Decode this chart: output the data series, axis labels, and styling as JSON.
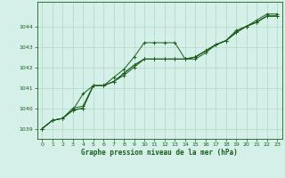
{
  "bg_color": "#d4f0e8",
  "grid_color": "#b0d8c8",
  "line_color": "#1a5c1a",
  "xlabel": "Graphe pression niveau de la mer (hPa)",
  "xlim": [
    -0.5,
    23.5
  ],
  "ylim": [
    1038.5,
    1045.2
  ],
  "yticks": [
    1039,
    1040,
    1041,
    1042,
    1043,
    1044
  ],
  "xticks": [
    0,
    1,
    2,
    3,
    4,
    5,
    6,
    7,
    8,
    9,
    10,
    11,
    12,
    13,
    14,
    15,
    16,
    17,
    18,
    19,
    20,
    21,
    22,
    23
  ],
  "series1": [
    [
      0,
      1039.0
    ],
    [
      1,
      1039.4
    ],
    [
      2,
      1039.5
    ],
    [
      3,
      1039.9
    ],
    [
      4,
      1040.7
    ],
    [
      5,
      1041.1
    ],
    [
      6,
      1041.1
    ],
    [
      7,
      1041.5
    ],
    [
      8,
      1041.9
    ],
    [
      9,
      1042.5
    ],
    [
      10,
      1043.2
    ],
    [
      11,
      1043.2
    ],
    [
      12,
      1043.2
    ],
    [
      13,
      1043.2
    ],
    [
      14,
      1042.4
    ],
    [
      15,
      1042.4
    ],
    [
      16,
      1042.7
    ],
    [
      17,
      1043.1
    ],
    [
      18,
      1043.3
    ],
    [
      19,
      1043.8
    ],
    [
      20,
      1044.0
    ],
    [
      21,
      1044.3
    ],
    [
      22,
      1044.6
    ],
    [
      23,
      1044.6
    ]
  ],
  "series2": [
    [
      0,
      1039.0
    ],
    [
      1,
      1039.4
    ],
    [
      2,
      1039.5
    ],
    [
      3,
      1040.0
    ],
    [
      4,
      1040.1
    ],
    [
      5,
      1041.1
    ],
    [
      6,
      1041.1
    ],
    [
      7,
      1041.3
    ],
    [
      8,
      1041.7
    ],
    [
      9,
      1042.1
    ],
    [
      10,
      1042.4
    ],
    [
      11,
      1042.4
    ],
    [
      12,
      1042.4
    ],
    [
      13,
      1042.4
    ],
    [
      14,
      1042.4
    ],
    [
      15,
      1042.5
    ],
    [
      16,
      1042.8
    ],
    [
      17,
      1043.1
    ],
    [
      18,
      1043.3
    ],
    [
      19,
      1043.7
    ],
    [
      20,
      1044.0
    ],
    [
      21,
      1044.2
    ],
    [
      22,
      1044.5
    ],
    [
      23,
      1044.5
    ]
  ],
  "series3": [
    [
      0,
      1039.0
    ],
    [
      1,
      1039.4
    ],
    [
      2,
      1039.5
    ],
    [
      3,
      1039.9
    ],
    [
      4,
      1040.0
    ],
    [
      5,
      1041.1
    ],
    [
      6,
      1041.1
    ],
    [
      7,
      1041.3
    ],
    [
      8,
      1041.7
    ],
    [
      9,
      1042.1
    ],
    [
      10,
      1042.4
    ],
    [
      11,
      1042.4
    ],
    [
      12,
      1042.4
    ],
    [
      13,
      1042.4
    ],
    [
      14,
      1042.4
    ],
    [
      15,
      1042.5
    ],
    [
      16,
      1042.8
    ],
    [
      17,
      1043.1
    ],
    [
      18,
      1043.3
    ],
    [
      19,
      1043.7
    ],
    [
      20,
      1044.0
    ],
    [
      21,
      1044.2
    ],
    [
      22,
      1044.5
    ],
    [
      23,
      1044.5
    ]
  ],
  "series4": [
    [
      0,
      1039.0
    ],
    [
      1,
      1039.4
    ],
    [
      2,
      1039.5
    ],
    [
      3,
      1039.9
    ],
    [
      4,
      1040.0
    ],
    [
      5,
      1041.1
    ],
    [
      6,
      1041.1
    ],
    [
      7,
      1041.3
    ],
    [
      8,
      1041.6
    ],
    [
      9,
      1042.0
    ],
    [
      10,
      1042.4
    ],
    [
      11,
      1042.4
    ],
    [
      12,
      1042.4
    ],
    [
      13,
      1042.4
    ],
    [
      14,
      1042.4
    ],
    [
      15,
      1042.5
    ],
    [
      16,
      1042.8
    ],
    [
      17,
      1043.1
    ],
    [
      18,
      1043.3
    ],
    [
      19,
      1043.7
    ],
    [
      20,
      1044.0
    ],
    [
      21,
      1044.2
    ],
    [
      22,
      1044.5
    ],
    [
      23,
      1044.5
    ]
  ]
}
